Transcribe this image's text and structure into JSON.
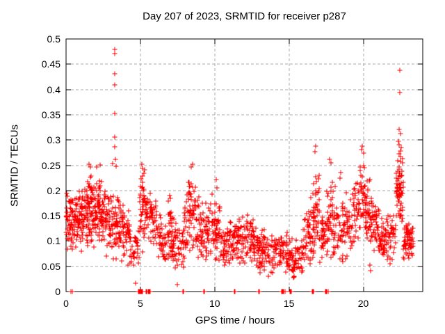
{
  "chart_data": {
    "type": "scatter",
    "title": "Day 207 of 2023, SRMTID for receiver p287",
    "xlabel": "GPS time / hours",
    "ylabel": "SRMTID / TECUs",
    "xlim": [
      0,
      24
    ],
    "ylim": [
      0,
      0.5
    ],
    "xticks": [
      0,
      5,
      10,
      15,
      20
    ],
    "xtick_labels": [
      "0",
      "5",
      "10",
      "15",
      "20"
    ],
    "yticks": [
      0,
      0.05,
      0.1,
      0.15,
      0.2,
      0.25,
      0.3,
      0.35,
      0.4,
      0.45,
      0.5
    ],
    "ytick_labels": [
      "0",
      "0.05",
      "0.1",
      "0.15",
      "0.2",
      "0.25",
      "0.3",
      "0.35",
      "0.4",
      "0.45",
      "0.5"
    ],
    "grid": true,
    "legend": "none",
    "marker": "plus",
    "marker_color": "#ff0000",
    "grid_color": "#ababab",
    "axis_color": "#000000",
    "background_color": "#ffffff",
    "seed": 2023207,
    "band_segments_format": "[t_start_h, t_end_h, n_points, y_center_start_TECU, y_center_end_TECU, y_spread_TECU] - estimated density bands of the dense scatter cloud read from the plot",
    "band_segments": [
      [
        0.0,
        0.35,
        40,
        0.145,
        0.145,
        0.065
      ],
      [
        0.35,
        1.2,
        95,
        0.135,
        0.148,
        0.072
      ],
      [
        1.2,
        2.1,
        105,
        0.155,
        0.168,
        0.082
      ],
      [
        2.1,
        2.7,
        70,
        0.165,
        0.152,
        0.075
      ],
      [
        2.7,
        3.6,
        80,
        0.135,
        0.128,
        0.07
      ],
      [
        3.6,
        4.3,
        60,
        0.122,
        0.108,
        0.068
      ],
      [
        4.3,
        4.95,
        32,
        0.09,
        0.078,
        0.05
      ],
      [
        4.95,
        5.35,
        48,
        0.155,
        0.17,
        0.09
      ],
      [
        5.35,
        6.2,
        62,
        0.158,
        0.128,
        0.062
      ],
      [
        6.2,
        7.25,
        72,
        0.104,
        0.098,
        0.055
      ],
      [
        6.85,
        7.15,
        14,
        0.152,
        0.148,
        0.045
      ],
      [
        7.25,
        7.95,
        46,
        0.094,
        0.088,
        0.05
      ],
      [
        7.95,
        8.75,
        72,
        0.138,
        0.158,
        0.09
      ],
      [
        8.75,
        9.2,
        40,
        0.128,
        0.118,
        0.068
      ],
      [
        9.2,
        10.05,
        62,
        0.118,
        0.128,
        0.07
      ],
      [
        10.05,
        10.4,
        32,
        0.128,
        0.118,
        0.078
      ],
      [
        10.4,
        11.35,
        70,
        0.094,
        0.09,
        0.055
      ],
      [
        11.35,
        12.6,
        92,
        0.099,
        0.104,
        0.056
      ],
      [
        12.6,
        13.15,
        46,
        0.086,
        0.084,
        0.05
      ],
      [
        13.15,
        14.45,
        82,
        0.08,
        0.079,
        0.05
      ],
      [
        14.45,
        15.1,
        46,
        0.079,
        0.075,
        0.045
      ],
      [
        15.1,
        15.9,
        52,
        0.069,
        0.074,
        0.044
      ],
      [
        15.9,
        16.45,
        46,
        0.089,
        0.108,
        0.06
      ],
      [
        16.45,
        17.05,
        62,
        0.118,
        0.168,
        0.1
      ],
      [
        17.05,
        17.45,
        30,
        0.099,
        0.108,
        0.058
      ],
      [
        17.45,
        18.25,
        66,
        0.128,
        0.158,
        0.095
      ],
      [
        18.25,
        19.3,
        72,
        0.118,
        0.134,
        0.075
      ],
      [
        19.3,
        20.1,
        66,
        0.148,
        0.198,
        0.085
      ],
      [
        20.1,
        20.45,
        40,
        0.168,
        0.158,
        0.07
      ],
      [
        20.45,
        21.1,
        52,
        0.138,
        0.128,
        0.06
      ],
      [
        21.1,
        22.2,
        88,
        0.108,
        0.112,
        0.056
      ],
      [
        22.2,
        22.7,
        72,
        0.198,
        0.208,
        0.08
      ],
      [
        22.7,
        23.35,
        72,
        0.103,
        0.098,
        0.046
      ]
    ],
    "outlier_points": [
      [
        3.27,
        0.48
      ],
      [
        3.29,
        0.471
      ],
      [
        3.28,
        0.431
      ],
      [
        3.27,
        0.409
      ],
      [
        3.28,
        0.352
      ],
      [
        3.27,
        0.306
      ],
      [
        3.29,
        0.286
      ],
      [
        3.31,
        0.262
      ],
      [
        3.15,
        0.254
      ],
      [
        3.38,
        0.248
      ],
      [
        22.45,
        0.438
      ],
      [
        22.47,
        0.394
      ],
      [
        22.42,
        0.321
      ],
      [
        22.51,
        0.313
      ],
      [
        22.35,
        0.298
      ],
      [
        22.4,
        0.291
      ],
      [
        22.55,
        0.285
      ],
      [
        16.8,
        0.288
      ],
      [
        16.75,
        0.277
      ],
      [
        17.75,
        0.262
      ],
      [
        17.82,
        0.255
      ],
      [
        19.95,
        0.288
      ],
      [
        19.9,
        0.281
      ],
      [
        20.02,
        0.274
      ],
      [
        10.1,
        0.222
      ],
      [
        10.16,
        0.205
      ],
      [
        8.5,
        0.252
      ],
      [
        8.44,
        0.246
      ],
      [
        5.1,
        0.252
      ],
      [
        5.13,
        0.244
      ],
      [
        1.55,
        0.252
      ],
      [
        1.62,
        0.246
      ],
      [
        2.3,
        0.251
      ],
      [
        2.05,
        0.247
      ],
      [
        18.5,
        0.235
      ],
      [
        18.44,
        0.224
      ],
      [
        6.95,
        0.19
      ],
      [
        7.02,
        0.184
      ],
      [
        4.67,
        0.016
      ],
      [
        7.47,
        0.014
      ],
      [
        20.45,
        0.052
      ],
      [
        20.5,
        0.042
      ],
      [
        13.6,
        0.03
      ],
      [
        15.3,
        0.028
      ],
      [
        12.2,
        0.152
      ],
      [
        11.9,
        0.148
      ]
    ],
    "zero_points": [
      0.35,
      0.42,
      4.85,
      4.9,
      4.94,
      4.98,
      5.02,
      5.06,
      5.1,
      5.15,
      5.4,
      5.45,
      5.5,
      5.55,
      5.6,
      5.65,
      7.85,
      7.92,
      9.25,
      9.32,
      11.3,
      11.38,
      12.95,
      13.02,
      14.5,
      14.55,
      14.6,
      14.66,
      14.72,
      15.05,
      15.1,
      15.16,
      16.55,
      16.6,
      16.66,
      17.45,
      17.5,
      17.56,
      17.62
    ]
  }
}
